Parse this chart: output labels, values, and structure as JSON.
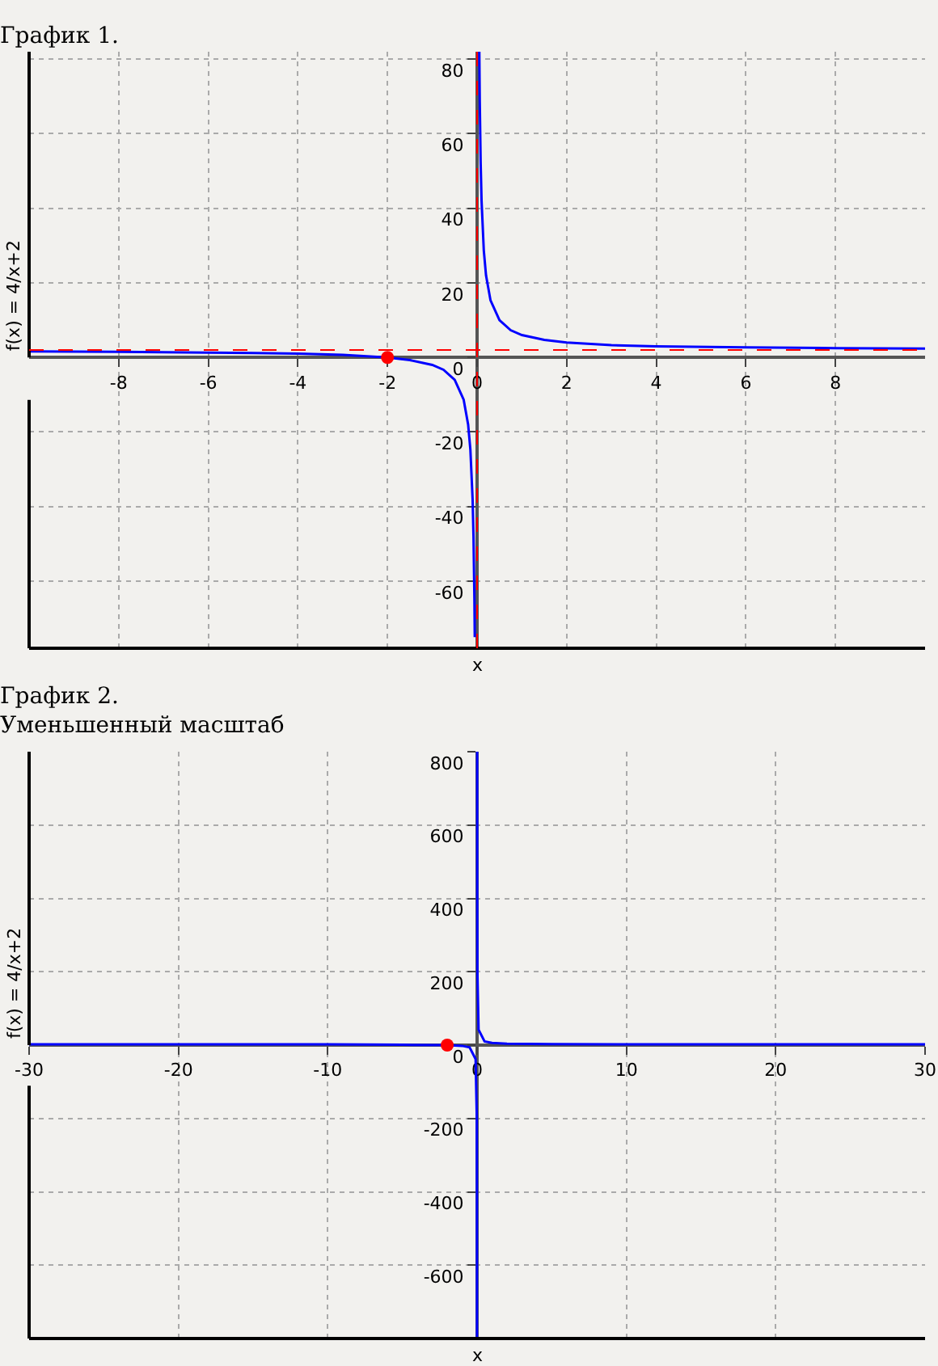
{
  "chart_data": [
    {
      "type": "line",
      "title": "График 1.",
      "xlabel": "x",
      "ylabel": "f(x) = 4/x+2",
      "xlim": [
        -10,
        10
      ],
      "ylim": [
        -78,
        82
      ],
      "xticks": [
        -8,
        -6,
        -4,
        -2,
        0,
        2,
        4,
        6,
        8
      ],
      "yticks": [
        -60,
        -40,
        -20,
        0,
        20,
        40,
        60,
        80
      ],
      "grid": true,
      "series": [
        {
          "color": "#0000ff",
          "x": [
            -10,
            -8,
            -6,
            -5,
            -4,
            -3,
            -2,
            -1.5,
            -1,
            -0.75,
            -0.5,
            -0.3,
            -0.2,
            -0.15,
            -0.1,
            -0.08,
            -0.06,
            -0.052,
            0,
            0.05,
            0.06,
            0.08,
            0.1,
            0.15,
            0.2,
            0.3,
            0.5,
            0.75,
            1,
            1.5,
            2,
            3,
            4,
            6,
            8,
            10
          ],
          "values": [
            1.6,
            1.5,
            1.3,
            1.2,
            1,
            0.7,
            0,
            -0.7,
            -2,
            -3.3,
            -6,
            -11.3,
            -18,
            -24.7,
            -38,
            -48,
            -64.7,
            -75,
            null,
            82,
            68.7,
            52,
            42,
            28.7,
            22,
            15.3,
            10,
            7.3,
            6,
            4.7,
            4,
            3.3,
            3,
            2.7,
            2.5,
            2.4
          ]
        },
        {
          "type": "scatter",
          "color": "#ff0000",
          "x": [
            -2
          ],
          "values": [
            0
          ]
        }
      ],
      "ref_lines": [
        {
          "axis": "y",
          "value": 2,
          "color": "#ff0000",
          "line_style": "dashed"
        },
        {
          "axis": "x",
          "value": 0,
          "color": "#ff0000",
          "line_style": "dashed"
        }
      ]
    },
    {
      "type": "line",
      "title": "График 2.",
      "subtitle": "Уменьшенный масштаб",
      "xlabel": "x",
      "ylabel": "f(x) = 4/x+2",
      "xlim": [
        -30,
        30
      ],
      "ylim": [
        -800,
        800
      ],
      "xticks": [
        -30,
        -20,
        -10,
        0,
        10,
        20,
        30
      ],
      "yticks": [
        -600,
        -400,
        -200,
        0,
        200,
        400,
        600,
        800
      ],
      "grid": true,
      "series": [
        {
          "color": "#0000ff",
          "x": [
            -30,
            -20,
            -10,
            -5,
            -2,
            -1,
            -0.5,
            -0.1,
            -0.02,
            -0.01,
            -0.005,
            0,
            0.005,
            0.01,
            0.02,
            0.1,
            0.5,
            1,
            2,
            5,
            10,
            20,
            30
          ],
          "values": [
            2,
            2,
            2,
            1,
            0,
            -2,
            -6,
            -38,
            -198,
            -398,
            -798,
            null,
            800,
            402,
            202,
            42,
            10,
            6,
            4,
            3,
            2,
            2,
            2
          ]
        },
        {
          "type": "scatter",
          "color": "#ff0000",
          "x": [
            -2
          ],
          "values": [
            0
          ]
        }
      ]
    }
  ]
}
